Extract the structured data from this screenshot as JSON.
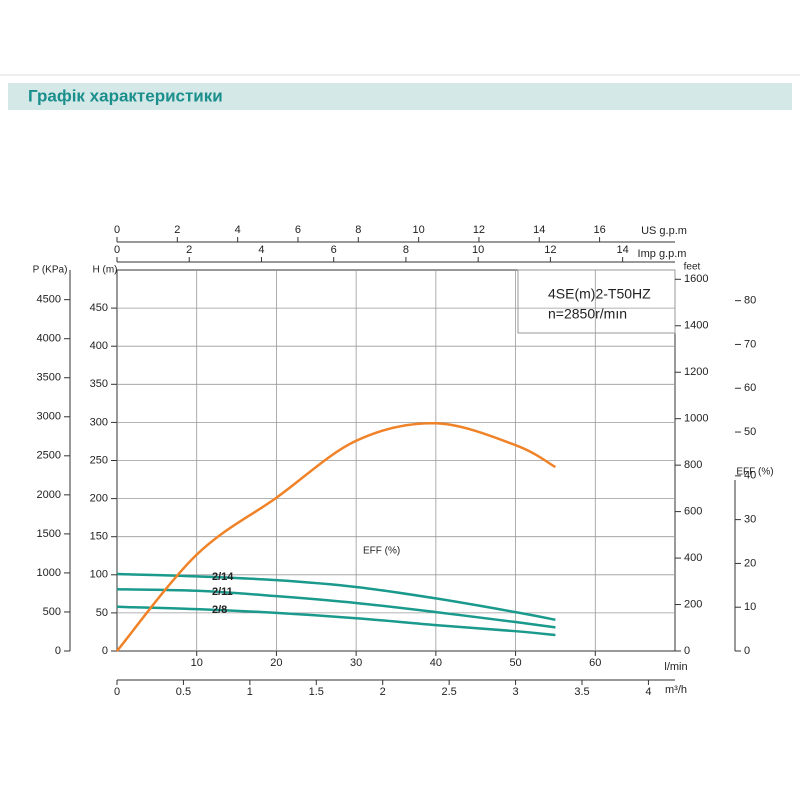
{
  "header": {
    "title": "Графік характеристики"
  },
  "chart_data": {
    "type": "line",
    "model": "4SE(m)2-T50HZ",
    "speed": "n=2850r/mın",
    "x": [
      0,
      10,
      20,
      30,
      40,
      50,
      55
    ],
    "series": [
      {
        "name": "2/14",
        "color": "#1a9a8c",
        "values": [
          101,
          98,
          93,
          84,
          69,
          51,
          41
        ]
      },
      {
        "name": "2/11",
        "color": "#1a9a8c",
        "values": [
          81,
          79,
          72,
          63,
          51,
          38,
          31
        ]
      },
      {
        "name": "2/8",
        "color": "#1a9a8c",
        "values": [
          58,
          55,
          50,
          43,
          34,
          26,
          21
        ]
      },
      {
        "name": "EFF (%)",
        "color": "#f08228",
        "axis": "eff",
        "values": [
          0,
          22,
          35,
          48,
          52,
          47,
          42
        ]
      }
    ],
    "xlabel": "l/min",
    "xlim": [
      0,
      70
    ],
    "xticks": [
      10,
      20,
      30,
      40,
      50,
      60
    ],
    "ylabel": "H (m)",
    "ylim": [
      0,
      500
    ],
    "yticks": [
      0,
      50,
      100,
      150,
      200,
      250,
      300,
      350,
      400,
      450
    ],
    "plabel": "P (KPa)",
    "plim": [
      0,
      4880
    ],
    "pticks": [
      0,
      500,
      1000,
      1500,
      2000,
      2500,
      3000,
      3500,
      4000,
      4500
    ],
    "y2label": "feet",
    "y2lim": [
      0,
      1640
    ],
    "y2ticks": [
      0,
      200,
      400,
      600,
      800,
      1000,
      1200,
      1400,
      1600
    ],
    "efflabel": "EFF (%)",
    "efflim": [
      0,
      87
    ],
    "effticks": [
      0,
      10,
      20,
      30,
      40,
      50,
      60,
      70,
      80
    ],
    "us_label": "US g.p.m",
    "us_lim": [
      0,
      18.5
    ],
    "us_ticks": [
      0,
      2,
      4,
      6,
      8,
      10,
      12,
      14,
      16
    ],
    "imp_label": "Imp g.p.m",
    "imp_lim": [
      0,
      15.45
    ],
    "imp_ticks": [
      0,
      2,
      4,
      6,
      8,
      10,
      12,
      14
    ],
    "m3h_label": "m³/h",
    "m3h_lim": [
      0,
      4.2
    ],
    "m3h_ticks": [
      0,
      0.5,
      1,
      1.5,
      2,
      2.5,
      3,
      3.5,
      4
    ],
    "grid": true
  }
}
